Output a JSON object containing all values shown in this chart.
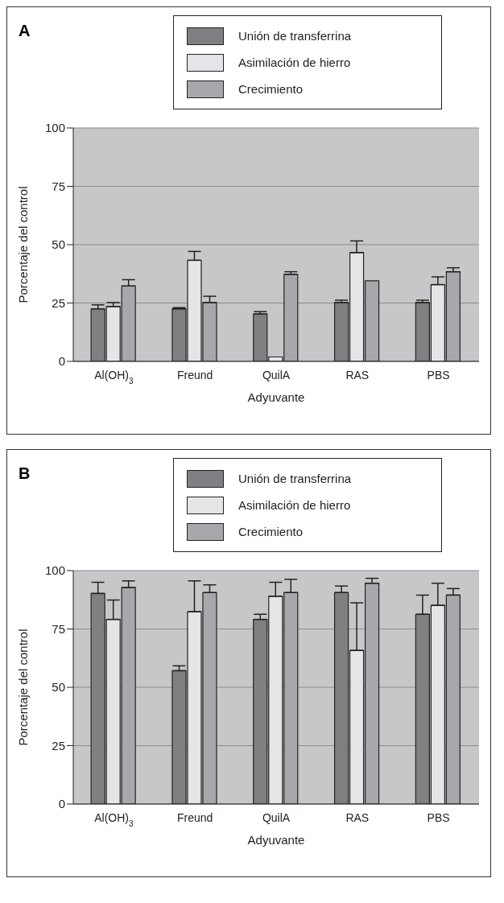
{
  "chart_data": [
    {
      "type": "bar",
      "title": "A",
      "xlabel": "Adyuvante",
      "ylabel": "Porcentaje del control",
      "categories": [
        "Al(OH)$_{3}$",
        "Freund",
        "QuilA",
        "RAS",
        "PBS"
      ],
      "series": [
        {
          "name": "Unión de transferrina",
          "color": "#808082",
          "values": [
            22.5,
            22.5,
            20.3,
            25.2,
            25.2
          ],
          "errors": [
            [
              22.5,
              24.2
            ],
            [
              22.5,
              23.0
            ],
            [
              20.3,
              21.3
            ],
            [
              25.2,
              26.2
            ],
            [
              25.2,
              26.2
            ]
          ]
        },
        {
          "name": "Asimilación de hierro",
          "color": "#e4e5e7",
          "values": [
            23.5,
            43.3,
            1.9,
            46.6,
            32.9
          ],
          "errors": [
            [
              23.5,
              25.2
            ],
            [
              43.3,
              47.1
            ],
            null,
            [
              46.6,
              51.6
            ],
            [
              32.9,
              36.2
            ]
          ]
        },
        {
          "name": "Crecimiento",
          "color": "#a7a8ab",
          "values": [
            32.3,
            25.2,
            37.3,
            34.5,
            38.4
          ],
          "errors": [
            [
              32.3,
              35.0
            ],
            [
              25.2,
              27.9
            ],
            [
              37.3,
              38.4
            ],
            null,
            [
              38.4,
              40.1
            ]
          ]
        }
      ],
      "ylim": [
        0,
        100
      ],
      "yticks": [
        0,
        25,
        50,
        75,
        100
      ],
      "grid": "y",
      "legend": "top right"
    },
    {
      "type": "bar",
      "title": "B",
      "xlabel": "Adyuvante",
      "ylabel": "Porcentaje del control",
      "categories": [
        "Al(OH)$_{3}$",
        "Freund",
        "QuilA",
        "RAS",
        "PBS"
      ],
      "series": [
        {
          "name": "Unión de transferrina",
          "color": "#808082",
          "values": [
            90.2,
            57.1,
            79.1,
            90.6,
            81.3
          ],
          "errors": [
            [
              90.2,
              95.0
            ],
            [
              57.1,
              59.2
            ],
            [
              79.1,
              81.3
            ],
            [
              90.6,
              93.4
            ],
            [
              81.3,
              89.5
            ]
          ]
        },
        {
          "name": "Asimilación de hierro",
          "color": "#e4e5e7",
          "values": [
            79.1,
            82.4,
            89.0,
            65.8,
            85.1
          ],
          "errors": [
            [
              79.1,
              87.4
            ],
            [
              82.4,
              95.6
            ],
            [
              89.0,
              95.0
            ],
            [
              65.8,
              86.2
            ],
            [
              85.1,
              94.6
            ]
          ]
        },
        {
          "name": "Crecimiento",
          "color": "#a7a8ab",
          "values": [
            92.8,
            90.6,
            90.6,
            94.6,
            89.5
          ],
          "errors": [
            [
              92.8,
              95.6
            ],
            [
              90.6,
              93.9
            ],
            [
              90.6,
              96.3
            ],
            [
              94.6,
              96.7
            ],
            [
              89.5,
              92.3
            ]
          ]
        }
      ],
      "ylim": [
        0,
        100
      ],
      "yticks": [
        0,
        25,
        50,
        75,
        100
      ],
      "grid": "y",
      "legend": "top right"
    }
  ]
}
